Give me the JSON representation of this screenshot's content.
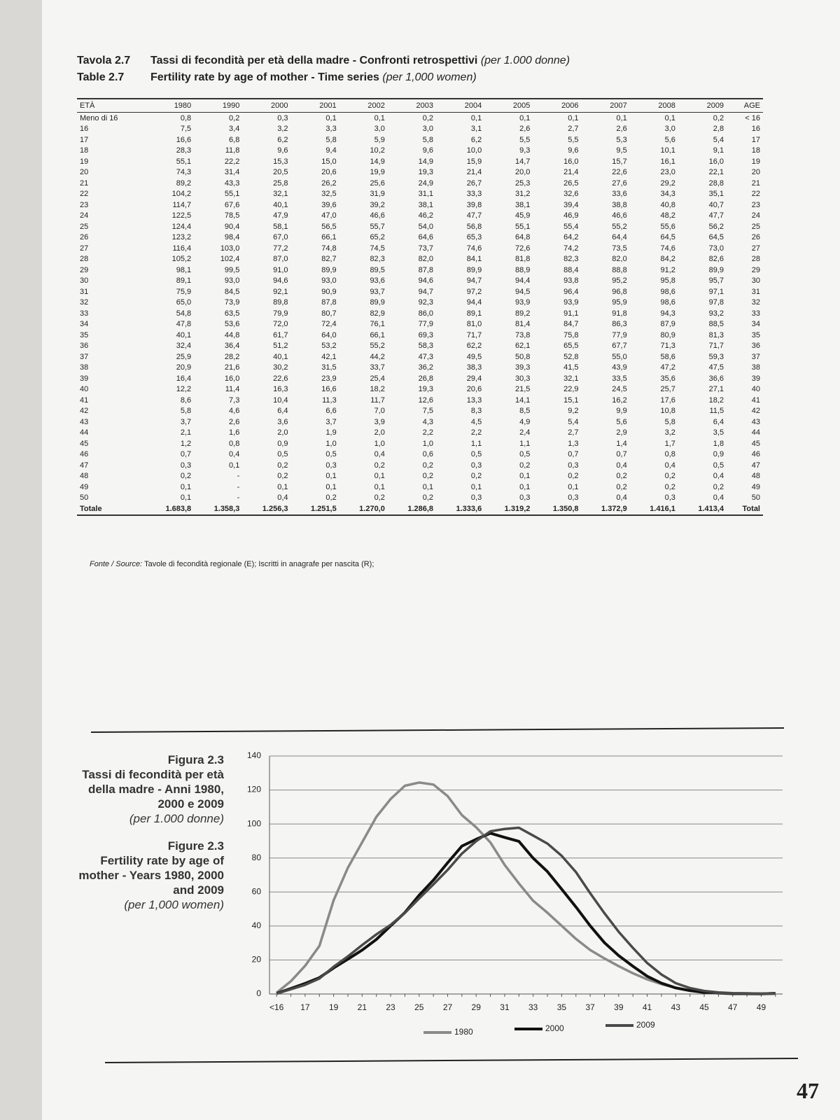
{
  "header": {
    "tavola_label": "Tavola 2.7",
    "tavola_title": "Tassi di fecondità per età della madre - Confronti retrospettivi",
    "tavola_unit": "(per 1.000 donne)",
    "table_label": "Table 2.7",
    "table_title": "Fertility rate by age of mother - Time series",
    "table_unit": "(per 1,000 women)"
  },
  "table": {
    "columns": [
      "ETÀ",
      "1980",
      "1990",
      "2000",
      "2001",
      "2002",
      "2003",
      "2004",
      "2005",
      "2006",
      "2007",
      "2008",
      "2009",
      "AGE"
    ],
    "rows": [
      [
        "Meno di 16",
        "0,8",
        "0,2",
        "0,3",
        "0,1",
        "0,1",
        "0,2",
        "0,1",
        "0,1",
        "0,1",
        "0,1",
        "0,1",
        "0,2",
        "< 16"
      ],
      [
        "16",
        "7,5",
        "3,4",
        "3,2",
        "3,3",
        "3,0",
        "3,0",
        "3,1",
        "2,6",
        "2,7",
        "2,6",
        "3,0",
        "2,8",
        "16"
      ],
      [
        "17",
        "16,6",
        "6,8",
        "6,2",
        "5,8",
        "5,9",
        "5,8",
        "6,2",
        "5,5",
        "5,5",
        "5,3",
        "5,6",
        "5,4",
        "17"
      ],
      [
        "18",
        "28,3",
        "11,8",
        "9,6",
        "9,4",
        "10,2",
        "9,6",
        "10,0",
        "9,3",
        "9,6",
        "9,5",
        "10,1",
        "9,1",
        "18"
      ],
      [
        "19",
        "55,1",
        "22,2",
        "15,3",
        "15,0",
        "14,9",
        "14,9",
        "15,9",
        "14,7",
        "16,0",
        "15,7",
        "16,1",
        "16,0",
        "19"
      ],
      [
        "20",
        "74,3",
        "31,4",
        "20,5",
        "20,6",
        "19,9",
        "19,3",
        "21,4",
        "20,0",
        "21,4",
        "22,6",
        "23,0",
        "22,1",
        "20"
      ],
      [
        "21",
        "89,2",
        "43,3",
        "25,8",
        "26,2",
        "25,6",
        "24,9",
        "26,7",
        "25,3",
        "26,5",
        "27,6",
        "29,2",
        "28,8",
        "21"
      ],
      [
        "22",
        "104,2",
        "55,1",
        "32,1",
        "32,5",
        "31,9",
        "31,1",
        "33,3",
        "31,2",
        "32,6",
        "33,6",
        "34,3",
        "35,1",
        "22"
      ],
      [
        "23",
        "114,7",
        "67,6",
        "40,1",
        "39,6",
        "39,2",
        "38,1",
        "39,8",
        "38,1",
        "39,4",
        "38,8",
        "40,8",
        "40,7",
        "23"
      ],
      [
        "24",
        "122,5",
        "78,5",
        "47,9",
        "47,0",
        "46,6",
        "46,2",
        "47,7",
        "45,9",
        "46,9",
        "46,6",
        "48,2",
        "47,7",
        "24"
      ],
      [
        "25",
        "124,4",
        "90,4",
        "58,1",
        "56,5",
        "55,7",
        "54,0",
        "56,8",
        "55,1",
        "55,4",
        "55,2",
        "55,6",
        "56,2",
        "25"
      ],
      [
        "26",
        "123,2",
        "98,4",
        "67,0",
        "66,1",
        "65,2",
        "64,6",
        "65,3",
        "64,8",
        "64,2",
        "64,4",
        "64,5",
        "64,5",
        "26"
      ],
      [
        "27",
        "116,4",
        "103,0",
        "77,2",
        "74,8",
        "74,5",
        "73,7",
        "74,6",
        "72,6",
        "74,2",
        "73,5",
        "74,6",
        "73,0",
        "27"
      ],
      [
        "28",
        "105,2",
        "102,4",
        "87,0",
        "82,7",
        "82,3",
        "82,0",
        "84,1",
        "81,8",
        "82,3",
        "82,0",
        "84,2",
        "82,6",
        "28"
      ],
      [
        "29",
        "98,1",
        "99,5",
        "91,0",
        "89,9",
        "89,5",
        "87,8",
        "89,9",
        "88,9",
        "88,4",
        "88,8",
        "91,2",
        "89,9",
        "29"
      ],
      [
        "30",
        "89,1",
        "93,0",
        "94,6",
        "93,0",
        "93,6",
        "94,6",
        "94,7",
        "94,4",
        "93,8",
        "95,2",
        "95,8",
        "95,7",
        "30"
      ],
      [
        "31",
        "75,9",
        "84,5",
        "92,1",
        "90,9",
        "93,7",
        "94,7",
        "97,2",
        "94,5",
        "96,4",
        "96,8",
        "98,6",
        "97,1",
        "31"
      ],
      [
        "32",
        "65,0",
        "73,9",
        "89,8",
        "87,8",
        "89,9",
        "92,3",
        "94,4",
        "93,9",
        "93,9",
        "95,9",
        "98,6",
        "97,8",
        "32"
      ],
      [
        "33",
        "54,8",
        "63,5",
        "79,9",
        "80,7",
        "82,9",
        "86,0",
        "89,1",
        "89,2",
        "91,1",
        "91,8",
        "94,3",
        "93,2",
        "33"
      ],
      [
        "34",
        "47,8",
        "53,6",
        "72,0",
        "72,4",
        "76,1",
        "77,9",
        "81,0",
        "81,4",
        "84,7",
        "86,3",
        "87,9",
        "88,5",
        "34"
      ],
      [
        "35",
        "40,1",
        "44,8",
        "61,7",
        "64,0",
        "66,1",
        "69,3",
        "71,7",
        "73,8",
        "75,8",
        "77,9",
        "80,9",
        "81,3",
        "35"
      ],
      [
        "36",
        "32,4",
        "36,4",
        "51,2",
        "53,2",
        "55,2",
        "58,3",
        "62,2",
        "62,1",
        "65,5",
        "67,7",
        "71,3",
        "71,7",
        "36"
      ],
      [
        "37",
        "25,9",
        "28,2",
        "40,1",
        "42,1",
        "44,2",
        "47,3",
        "49,5",
        "50,8",
        "52,8",
        "55,0",
        "58,6",
        "59,3",
        "37"
      ],
      [
        "38",
        "20,9",
        "21,6",
        "30,2",
        "31,5",
        "33,7",
        "36,2",
        "38,3",
        "39,3",
        "41,5",
        "43,9",
        "47,2",
        "47,5",
        "38"
      ],
      [
        "39",
        "16,4",
        "16,0",
        "22,6",
        "23,9",
        "25,4",
        "26,8",
        "29,4",
        "30,3",
        "32,1",
        "33,5",
        "35,6",
        "36,6",
        "39"
      ],
      [
        "40",
        "12,2",
        "11,4",
        "16,3",
        "16,6",
        "18,2",
        "19,3",
        "20,6",
        "21,5",
        "22,9",
        "24,5",
        "25,7",
        "27,1",
        "40"
      ],
      [
        "41",
        "8,6",
        "7,3",
        "10,4",
        "11,3",
        "11,7",
        "12,6",
        "13,3",
        "14,1",
        "15,1",
        "16,2",
        "17,6",
        "18,2",
        "41"
      ],
      [
        "42",
        "5,8",
        "4,6",
        "6,4",
        "6,6",
        "7,0",
        "7,5",
        "8,3",
        "8,5",
        "9,2",
        "9,9",
        "10,8",
        "11,5",
        "42"
      ],
      [
        "43",
        "3,7",
        "2,6",
        "3,6",
        "3,7",
        "3,9",
        "4,3",
        "4,5",
        "4,9",
        "5,4",
        "5,6",
        "5,8",
        "6,4",
        "43"
      ],
      [
        "44",
        "2,1",
        "1,6",
        "2,0",
        "1,9",
        "2,0",
        "2,2",
        "2,2",
        "2,4",
        "2,7",
        "2,9",
        "3,2",
        "3,5",
        "44"
      ],
      [
        "45",
        "1,2",
        "0,8",
        "0,9",
        "1,0",
        "1,0",
        "1,0",
        "1,1",
        "1,1",
        "1,3",
        "1,4",
        "1,7",
        "1,8",
        "45"
      ],
      [
        "46",
        "0,7",
        "0,4",
        "0,5",
        "0,5",
        "0,4",
        "0,6",
        "0,5",
        "0,5",
        "0,7",
        "0,7",
        "0,8",
        "0,9",
        "46"
      ],
      [
        "47",
        "0,3",
        "0,1",
        "0,2",
        "0,3",
        "0,2",
        "0,2",
        "0,3",
        "0,2",
        "0,3",
        "0,4",
        "0,4",
        "0,5",
        "47"
      ],
      [
        "48",
        "0,2",
        "-",
        "0,2",
        "0,1",
        "0,1",
        "0,2",
        "0,2",
        "0,1",
        "0,2",
        "0,2",
        "0,2",
        "0,4",
        "48"
      ],
      [
        "49",
        "0,1",
        "-",
        "0,1",
        "0,1",
        "0,1",
        "0,1",
        "0,1",
        "0,1",
        "0,1",
        "0,2",
        "0,2",
        "0,2",
        "49"
      ],
      [
        "50",
        "0,1",
        "-",
        "0,4",
        "0,2",
        "0,2",
        "0,2",
        "0,3",
        "0,3",
        "0,3",
        "0,4",
        "0,3",
        "0,4",
        "50"
      ],
      [
        "Totale",
        "1.683,8",
        "1.358,3",
        "1.256,3",
        "1.251,5",
        "1.270,0",
        "1.286,8",
        "1.333,6",
        "1.319,2",
        "1.350,8",
        "1.372,9",
        "1.416,1",
        "1.413,4",
        "Total"
      ]
    ]
  },
  "source": {
    "label": "Fonte / Source:",
    "text": "Tavole di fecondità regionale (E); Iscritti in anagrafe per nascita (R);"
  },
  "figure": {
    "it_label": "Figura 2.3",
    "it_title": "Tassi di fecondità per età della madre - Anni 1980, 2000 e 2009",
    "it_unit": "(per 1.000 donne)",
    "en_label": "Figure 2.3",
    "en_title": "Fertility rate by age of mother - Years 1980, 2000 and 2009",
    "en_unit": "(per 1,000 women)"
  },
  "chart_data": {
    "type": "line",
    "categories": [
      "<16",
      null,
      "17",
      null,
      "19",
      null,
      "21",
      null,
      "23",
      null,
      "25",
      null,
      "27",
      null,
      "29",
      null,
      "31",
      null,
      "33",
      null,
      "35",
      null,
      "37",
      null,
      "39",
      null,
      "41",
      null,
      "43",
      null,
      "45",
      null,
      "47",
      null,
      "49",
      null
    ],
    "series": [
      {
        "name": "1980",
        "color": "#8a8a8a",
        "values": [
          0.8,
          7.5,
          16.6,
          28.3,
          55.1,
          74.3,
          89.2,
          104.2,
          114.7,
          122.5,
          124.4,
          123.2,
          116.4,
          105.2,
          98.1,
          89.1,
          75.9,
          65.0,
          54.8,
          47.8,
          40.1,
          32.4,
          25.9,
          20.9,
          16.4,
          12.2,
          8.6,
          5.8,
          3.7,
          2.1,
          1.2,
          0.7,
          0.3,
          0.2,
          0.1,
          0.1
        ]
      },
      {
        "name": "2000",
        "color": "#111111",
        "values": [
          0.3,
          3.2,
          6.2,
          9.6,
          15.3,
          20.5,
          25.8,
          32.1,
          40.1,
          47.9,
          58.1,
          67.0,
          77.2,
          87.0,
          91.0,
          94.6,
          92.1,
          89.8,
          79.9,
          72.0,
          61.7,
          51.2,
          40.1,
          30.2,
          22.6,
          16.3,
          10.4,
          6.4,
          3.6,
          2.0,
          0.9,
          0.5,
          0.2,
          0.2,
          0.1,
          0.4
        ]
      },
      {
        "name": "2009",
        "color": "#4a4a4a",
        "values": [
          0.2,
          2.8,
          5.4,
          9.1,
          16.0,
          22.1,
          28.8,
          35.1,
          40.7,
          47.7,
          56.2,
          64.5,
          73.0,
          82.6,
          89.9,
          95.7,
          97.1,
          97.8,
          93.2,
          88.5,
          81.3,
          71.7,
          59.3,
          47.5,
          36.6,
          27.1,
          18.2,
          11.5,
          6.4,
          3.5,
          1.8,
          0.9,
          0.5,
          0.4,
          0.2,
          0.4
        ]
      }
    ],
    "ylim": [
      0,
      140
    ],
    "yticks": [
      0,
      20,
      40,
      60,
      80,
      100,
      120,
      140
    ],
    "grid": true
  },
  "page_number": "47"
}
